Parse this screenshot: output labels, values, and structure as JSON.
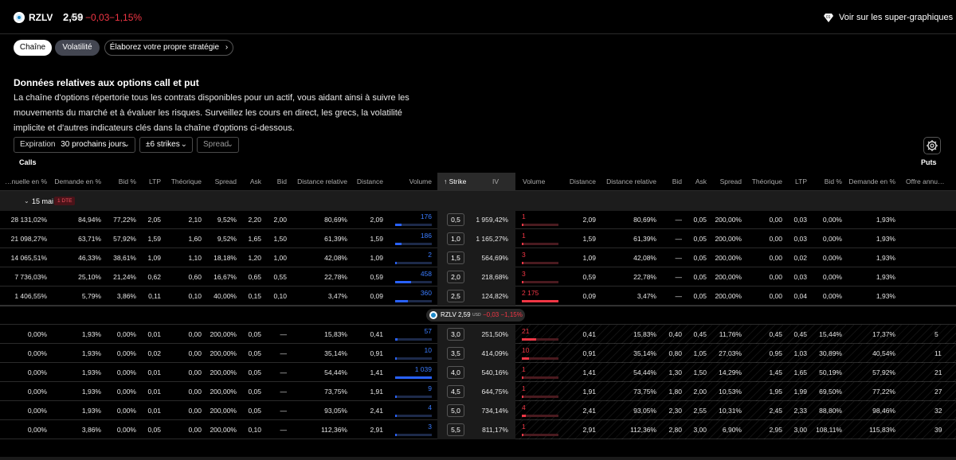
{
  "header": {
    "symbol": "RZLV",
    "price": "2,59",
    "currency": "USD",
    "change": "−0,03",
    "change_pct": "−1,15%",
    "super_charts_link": "Voir sur les super-graphiques",
    "negative_color": "#f23645"
  },
  "tabs": [
    {
      "label": "Chaîne",
      "active": true
    },
    {
      "label": "Volatilité",
      "active": false
    },
    {
      "label": "Élaborez votre propre stratégie",
      "icon": "chevron-right-icon"
    }
  ],
  "intro": {
    "title": "Données relatives aux options call et put",
    "text": "La chaîne d'options répertorie tous les contrats disponibles pour un actif, vous aidant ainsi à suivre les mouvements du marché et à évaluer les risques. Surveillez les cours en direct, les grecs, la volatilité implicite et d'autres indicateurs clés dans la chaîne d'options ci-dessous."
  },
  "filters": {
    "expiration_label": "Expiration",
    "expiration_value": "30 prochains jours",
    "strikes_value": "±6 strikes",
    "spread_value": "Spread",
    "settings_icon": "gear-icon"
  },
  "sides": {
    "calls": "Calls",
    "puts": "Puts"
  },
  "columns": {
    "calls": [
      "…nuelle en %",
      "Demande en %",
      "Bid %",
      "LTP",
      "Théorique",
      "Spread",
      "Ask",
      "Bid",
      "Distance relative",
      "Distance",
      "Volume"
    ],
    "strike": "Strike",
    "iv": "IV",
    "puts": [
      "Volume",
      "Distance",
      "Distance relative",
      "Bid",
      "Ask",
      "Spread",
      "Théorique",
      "LTP",
      "Bid %",
      "Demande en %",
      "Offre annu…"
    ]
  },
  "expiry_group": {
    "label": "15 mai",
    "dte": "1 DTE"
  },
  "price_marker": {
    "symbol": "RZLV",
    "price": "2,59",
    "currency": "USD",
    "change": "−0,03",
    "change_pct": "−1,15%"
  },
  "rows_itm_calls": [
    {
      "calls": [
        "28 131,02%",
        "84,94%",
        "77,22%",
        "2,05",
        "2,10",
        "9,52%",
        "2,20",
        "2,00",
        "80,69%",
        "2,09"
      ],
      "call_volume": "176",
      "call_vol_frac": 0.17,
      "strike": "0,5",
      "iv": "1 959,42%",
      "put_volume": "1",
      "put_vol_frac": 0.02,
      "puts": [
        "2,09",
        "80,69%",
        "—",
        "0,05",
        "200,00%",
        "0,00",
        "0,03",
        "0,00%",
        "1,93%",
        ""
      ]
    },
    {
      "calls": [
        "21 098,27%",
        "63,71%",
        "57,92%",
        "1,59",
        "1,60",
        "9,52%",
        "1,65",
        "1,50",
        "61,39%",
        "1,59"
      ],
      "call_volume": "186",
      "call_vol_frac": 0.18,
      "strike": "1,0",
      "iv": "1 165,27%",
      "put_volume": "1",
      "put_vol_frac": 0.02,
      "puts": [
        "1,59",
        "61,39%",
        "—",
        "0,05",
        "200,00%",
        "0,00",
        "0,03",
        "0,00%",
        "1,93%",
        ""
      ]
    },
    {
      "calls": [
        "14 065,51%",
        "46,33%",
        "38,61%",
        "1,09",
        "1,10",
        "18,18%",
        "1,20",
        "1,00",
        "42,08%",
        "1,09"
      ],
      "call_volume": "2",
      "call_vol_frac": 0.02,
      "strike": "1,5",
      "iv": "564,69%",
      "put_volume": "3",
      "put_vol_frac": 0.03,
      "puts": [
        "1,09",
        "42,08%",
        "—",
        "0,05",
        "200,00%",
        "0,00",
        "0,02",
        "0,00%",
        "1,93%",
        ""
      ]
    },
    {
      "calls": [
        "7 736,03%",
        "25,10%",
        "21,24%",
        "0,62",
        "0,60",
        "16,67%",
        "0,65",
        "0,55",
        "22,78%",
        "0,59"
      ],
      "call_volume": "458",
      "call_vol_frac": 0.44,
      "strike": "2,0",
      "iv": "218,68%",
      "put_volume": "3",
      "put_vol_frac": 0.03,
      "puts": [
        "0,59",
        "22,78%",
        "—",
        "0,05",
        "200,00%",
        "0,00",
        "0,03",
        "0,00%",
        "1,93%",
        ""
      ]
    },
    {
      "calls": [
        "1 406,55%",
        "5,79%",
        "3,86%",
        "0,11",
        "0,10",
        "40,00%",
        "0,15",
        "0,10",
        "3,47%",
        "0,09"
      ],
      "call_volume": "360",
      "call_vol_frac": 0.35,
      "strike": "2,5",
      "iv": "124,82%",
      "put_volume": "2 175",
      "put_vol_frac": 1.0,
      "puts": [
        "0,09",
        "3,47%",
        "—",
        "0,05",
        "200,00%",
        "0,00",
        "0,04",
        "0,00%",
        "1,93%",
        ""
      ]
    }
  ],
  "rows_itm_puts": [
    {
      "calls": [
        "0,00%",
        "1,93%",
        "0,00%",
        "0,01",
        "0,00",
        "200,00%",
        "0,05",
        "—",
        "15,83%",
        "0,41"
      ],
      "call_volume": "57",
      "call_vol_frac": 0.06,
      "strike": "3,0",
      "iv": "251,50%",
      "put_volume": "21",
      "put_vol_frac": 0.4,
      "puts": [
        "0,41",
        "15,83%",
        "0,40",
        "0,45",
        "11,76%",
        "0,45",
        "0,45",
        "15,44%",
        "17,37%",
        "5"
      ]
    },
    {
      "calls": [
        "0,00%",
        "1,93%",
        "0,00%",
        "0,02",
        "0,00",
        "200,00%",
        "0,05",
        "—",
        "35,14%",
        "0,91"
      ],
      "call_volume": "10",
      "call_vol_frac": 0.03,
      "strike": "3,5",
      "iv": "414,09%",
      "put_volume": "10",
      "put_vol_frac": 0.2,
      "puts": [
        "0,91",
        "35,14%",
        "0,80",
        "1,05",
        "27,03%",
        "0,95",
        "1,03",
        "30,89%",
        "40,54%",
        "11"
      ]
    },
    {
      "calls": [
        "0,00%",
        "1,93%",
        "0,00%",
        "0,01",
        "0,00",
        "200,00%",
        "0,05",
        "—",
        "54,44%",
        "1,41"
      ],
      "call_volume": "1 039",
      "call_vol_frac": 1.0,
      "strike": "4,0",
      "iv": "540,16%",
      "put_volume": "1",
      "put_vol_frac": 0.05,
      "puts": [
        "1,41",
        "54,44%",
        "1,30",
        "1,50",
        "14,29%",
        "1,45",
        "1,65",
        "50,19%",
        "57,92%",
        "21"
      ]
    },
    {
      "calls": [
        "0,00%",
        "1,93%",
        "0,00%",
        "0,01",
        "0,00",
        "200,00%",
        "0,05",
        "—",
        "73,75%",
        "1,91"
      ],
      "call_volume": "9",
      "call_vol_frac": 0.02,
      "strike": "4,5",
      "iv": "644,75%",
      "put_volume": "1",
      "put_vol_frac": 0.05,
      "puts": [
        "1,91",
        "73,75%",
        "1,80",
        "2,00",
        "10,53%",
        "1,95",
        "1,99",
        "69,50%",
        "77,22%",
        "27"
      ]
    },
    {
      "calls": [
        "0,00%",
        "1,93%",
        "0,00%",
        "0,01",
        "0,00",
        "200,00%",
        "0,05",
        "—",
        "93,05%",
        "2,41"
      ],
      "call_volume": "4",
      "call_vol_frac": 0.01,
      "strike": "5,0",
      "iv": "734,14%",
      "put_volume": "4",
      "put_vol_frac": 0.1,
      "puts": [
        "2,41",
        "93,05%",
        "2,30",
        "2,55",
        "10,31%",
        "2,45",
        "2,33",
        "88,80%",
        "98,46%",
        "32"
      ]
    },
    {
      "calls": [
        "0,00%",
        "3,86%",
        "0,00%",
        "0,05",
        "0,00",
        "200,00%",
        "0,10",
        "—",
        "112,36%",
        "2,91"
      ],
      "call_volume": "3",
      "call_vol_frac": 0.01,
      "strike": "5,5",
      "iv": "811,17%",
      "put_volume": "1",
      "put_vol_frac": 0.05,
      "puts": [
        "2,91",
        "112,36%",
        "2,80",
        "3,00",
        "6,90%",
        "2,95",
        "3,00",
        "108,11%",
        "115,83%",
        "39"
      ]
    }
  ]
}
